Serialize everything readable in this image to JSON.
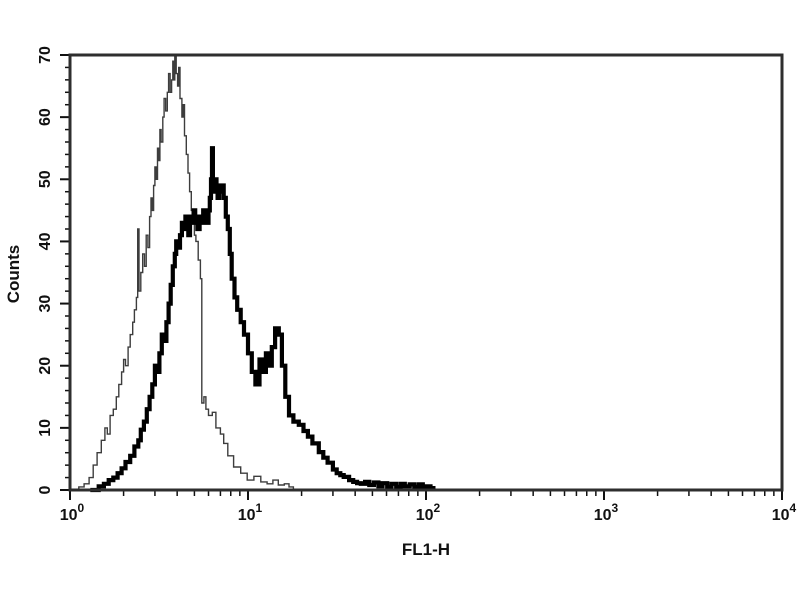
{
  "page": {
    "background": "#ffffff"
  },
  "chart_data": {
    "type": "line",
    "subtype": "flow-cytometry-histogram-overlay",
    "title": "",
    "xlabel": "FL1-H",
    "ylabel": "Counts",
    "x_scale": "log10",
    "xlim": [
      1,
      10000
    ],
    "ylim": [
      0,
      70
    ],
    "grid": false,
    "legend_position": "none",
    "frame_color": "#2e2e2e",
    "tick_color": "#111111",
    "label_color": "#111111",
    "x_ticks": [
      {
        "base": "10",
        "exp": "0",
        "value": 1
      },
      {
        "base": "10",
        "exp": "1",
        "value": 10
      },
      {
        "base": "10",
        "exp": "2",
        "value": 100
      },
      {
        "base": "10",
        "exp": "3",
        "value": 1000
      },
      {
        "base": "10",
        "exp": "4",
        "value": 10000
      }
    ],
    "x_minor_subdivisions": [
      2,
      3,
      4,
      5,
      6,
      7,
      8,
      9
    ],
    "y_ticks": [
      0,
      10,
      20,
      30,
      40,
      50,
      60,
      70
    ],
    "y_minor_step": 2,
    "series": [
      {
        "name": "thin_histogram",
        "color": "#3d3d3d",
        "stroke_width": 1.4,
        "peak": {
          "x": 3.9,
          "count": 70
        },
        "points": [
          [
            1.05,
            0
          ],
          [
            1.12,
            0.5
          ],
          [
            1.2,
            1
          ],
          [
            1.28,
            2
          ],
          [
            1.35,
            4
          ],
          [
            1.42,
            6
          ],
          [
            1.5,
            8
          ],
          [
            1.57,
            10
          ],
          [
            1.62,
            9
          ],
          [
            1.68,
            12
          ],
          [
            1.75,
            13
          ],
          [
            1.82,
            15
          ],
          [
            1.88,
            17
          ],
          [
            1.95,
            19
          ],
          [
            2.0,
            21
          ],
          [
            2.05,
            20
          ],
          [
            2.12,
            23
          ],
          [
            2.18,
            25
          ],
          [
            2.25,
            27
          ],
          [
            2.3,
            29
          ],
          [
            2.36,
            31
          ],
          [
            2.4,
            42
          ],
          [
            2.44,
            32
          ],
          [
            2.5,
            35
          ],
          [
            2.56,
            38
          ],
          [
            2.62,
            36
          ],
          [
            2.68,
            41
          ],
          [
            2.74,
            39
          ],
          [
            2.8,
            44
          ],
          [
            2.85,
            47
          ],
          [
            2.9,
            45
          ],
          [
            2.95,
            49
          ],
          [
            3.0,
            52
          ],
          [
            3.05,
            50
          ],
          [
            3.1,
            55
          ],
          [
            3.15,
            53
          ],
          [
            3.2,
            58
          ],
          [
            3.25,
            56
          ],
          [
            3.32,
            60
          ],
          [
            3.38,
            63
          ],
          [
            3.45,
            61
          ],
          [
            3.52,
            64
          ],
          [
            3.58,
            67
          ],
          [
            3.65,
            64
          ],
          [
            3.72,
            66
          ],
          [
            3.78,
            69
          ],
          [
            3.82,
            66
          ],
          [
            3.88,
            70
          ],
          [
            3.95,
            67
          ],
          [
            4.02,
            65
          ],
          [
            4.08,
            68
          ],
          [
            4.15,
            63
          ],
          [
            4.25,
            60
          ],
          [
            4.32,
            62
          ],
          [
            4.4,
            57
          ],
          [
            4.5,
            54
          ],
          [
            4.6,
            51
          ],
          [
            4.7,
            48
          ],
          [
            4.8,
            45
          ],
          [
            4.9,
            43
          ],
          [
            5.0,
            41
          ],
          [
            5.1,
            40
          ],
          [
            5.25,
            37
          ],
          [
            5.4,
            34
          ],
          [
            5.5,
            14
          ],
          [
            5.65,
            15
          ],
          [
            5.8,
            13
          ],
          [
            6.0,
            12
          ],
          [
            6.3,
            12.5
          ],
          [
            6.6,
            10
          ],
          [
            7.0,
            9
          ],
          [
            7.3,
            7.5
          ],
          [
            7.7,
            5.5
          ],
          [
            8.3,
            3.7
          ],
          [
            9.1,
            2.7
          ],
          [
            9.9,
            1.6
          ],
          [
            10.8,
            2.2
          ],
          [
            11.8,
            1.3
          ],
          [
            12.8,
            1
          ],
          [
            13.8,
            1.6
          ],
          [
            14.8,
            0.8
          ],
          [
            16,
            1
          ],
          [
            17,
            0.5
          ],
          [
            18,
            0
          ]
        ]
      },
      {
        "name": "thick_histogram",
        "color": "#000000",
        "stroke_width": 4.2,
        "peak": {
          "x": 6.3,
          "count": 55
        },
        "points": [
          [
            1.3,
            0
          ],
          [
            1.45,
            0.6
          ],
          [
            1.55,
            1
          ],
          [
            1.65,
            1.6
          ],
          [
            1.75,
            2
          ],
          [
            1.85,
            2.7
          ],
          [
            1.95,
            3.5
          ],
          [
            2.05,
            4.5
          ],
          [
            2.18,
            5.5
          ],
          [
            2.3,
            7
          ],
          [
            2.42,
            8
          ],
          [
            2.5,
            9.7
          ],
          [
            2.6,
            11
          ],
          [
            2.7,
            13
          ],
          [
            2.8,
            15
          ],
          [
            2.9,
            17
          ],
          [
            3.0,
            20
          ],
          [
            3.08,
            19
          ],
          [
            3.18,
            22
          ],
          [
            3.28,
            25
          ],
          [
            3.38,
            24
          ],
          [
            3.48,
            27
          ],
          [
            3.58,
            30
          ],
          [
            3.68,
            33
          ],
          [
            3.78,
            36
          ],
          [
            3.88,
            38
          ],
          [
            3.95,
            40
          ],
          [
            4.05,
            39
          ],
          [
            4.15,
            41
          ],
          [
            4.25,
            43
          ],
          [
            4.35,
            42
          ],
          [
            4.45,
            44
          ],
          [
            4.55,
            43
          ],
          [
            4.62,
            41
          ],
          [
            4.72,
            44
          ],
          [
            4.85,
            43
          ],
          [
            4.95,
            45
          ],
          [
            5.05,
            44
          ],
          [
            5.2,
            42
          ],
          [
            5.35,
            44
          ],
          [
            5.5,
            43
          ],
          [
            5.6,
            45
          ],
          [
            5.75,
            44
          ],
          [
            5.9,
            43
          ],
          [
            6.0,
            45
          ],
          [
            6.1,
            47
          ],
          [
            6.2,
            50
          ],
          [
            6.28,
            55
          ],
          [
            6.35,
            50
          ],
          [
            6.45,
            48
          ],
          [
            6.55,
            50
          ],
          [
            6.65,
            49
          ],
          [
            6.75,
            47
          ],
          [
            6.9,
            48
          ],
          [
            7.1,
            49
          ],
          [
            7.3,
            47
          ],
          [
            7.5,
            44
          ],
          [
            7.7,
            42
          ],
          [
            7.9,
            38
          ],
          [
            8.1,
            34
          ],
          [
            8.4,
            31
          ],
          [
            8.7,
            29
          ],
          [
            9.1,
            27
          ],
          [
            9.5,
            25
          ],
          [
            10.0,
            22
          ],
          [
            10.5,
            19
          ],
          [
            11.0,
            17
          ],
          [
            11.6,
            21
          ],
          [
            12.1,
            19
          ],
          [
            12.6,
            22
          ],
          [
            13.1,
            20
          ],
          [
            13.6,
            23
          ],
          [
            14.2,
            26
          ],
          [
            14.9,
            25
          ],
          [
            15.5,
            20
          ],
          [
            16.2,
            15
          ],
          [
            17.0,
            12
          ],
          [
            18.0,
            11
          ],
          [
            19.3,
            10.5
          ],
          [
            20.5,
            9.5
          ],
          [
            21.7,
            8.6
          ],
          [
            23,
            7.5
          ],
          [
            25,
            6.1
          ],
          [
            26.5,
            5.2
          ],
          [
            28,
            4.4
          ],
          [
            30,
            3.3
          ],
          [
            31.5,
            2.7
          ],
          [
            33,
            2.4
          ],
          [
            34.5,
            2.1
          ],
          [
            37,
            1.6
          ],
          [
            39,
            1.3
          ],
          [
            41,
            1.1
          ],
          [
            43,
            1
          ],
          [
            45.5,
            1.3
          ],
          [
            48,
            0.8
          ],
          [
            51,
            1.2
          ],
          [
            54,
            0.6
          ],
          [
            57,
            1.1
          ],
          [
            60.5,
            0.5
          ],
          [
            64,
            1
          ],
          [
            68,
            0.5
          ],
          [
            72,
            1
          ],
          [
            76,
            0.6
          ],
          [
            81,
            0.9
          ],
          [
            86,
            0.5
          ],
          [
            91,
            0.9
          ],
          [
            96,
            0.4
          ],
          [
            101,
            0.6
          ],
          [
            106,
            0.3
          ],
          [
            110,
            0
          ]
        ]
      }
    ]
  }
}
